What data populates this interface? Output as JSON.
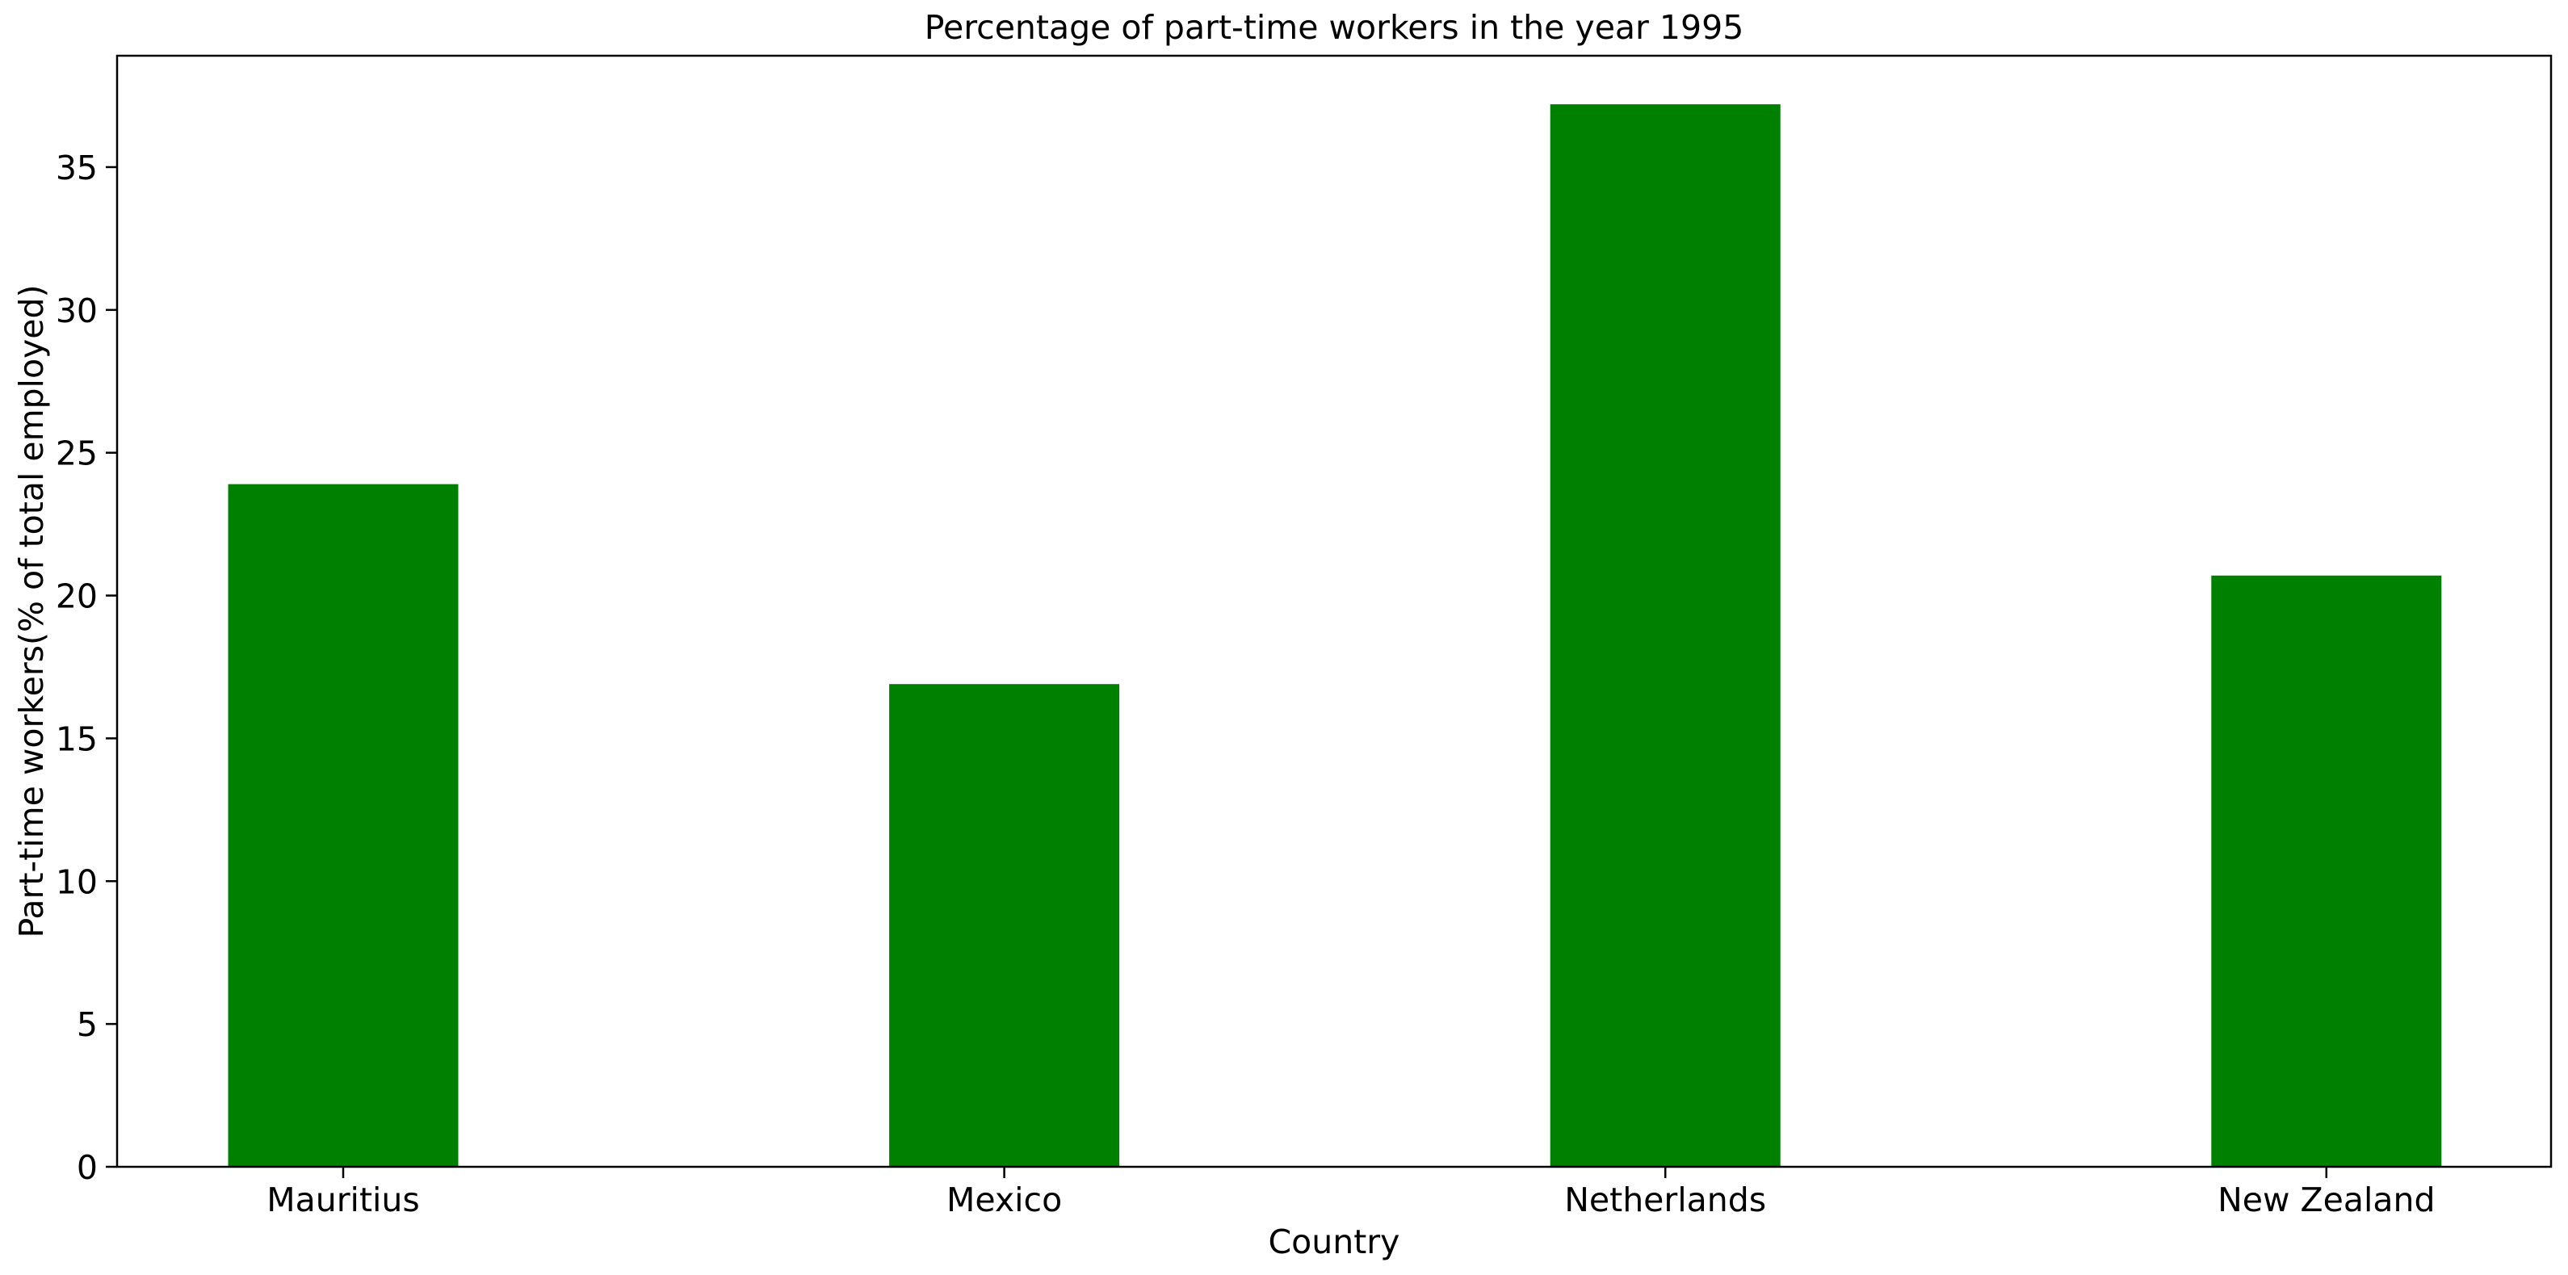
{
  "chart_data": {
    "type": "bar",
    "title": "Percentage of part-time workers in the year 1995",
    "xlabel": "Country",
    "ylabel": "Part-time workers(% of total employed)",
    "categories": [
      "Mauritius",
      "Mexico",
      "Netherlands",
      "New Zealand"
    ],
    "values": [
      23.9,
      16.9,
      37.2,
      20.7
    ],
    "ylim": [
      0,
      38.9
    ],
    "yticks": [
      0,
      5,
      10,
      15,
      20,
      25,
      30,
      35
    ],
    "grid": false,
    "legend": "none",
    "bar_color": "#008000"
  }
}
